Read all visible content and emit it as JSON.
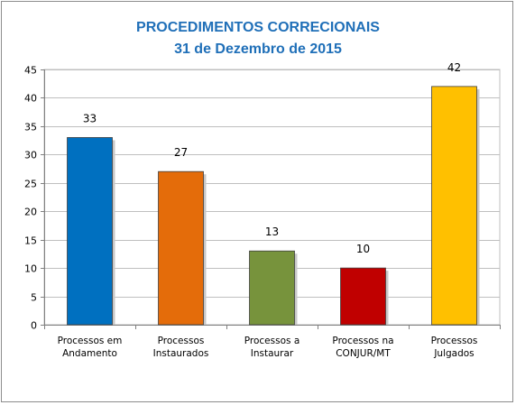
{
  "chart_data": {
    "type": "bar",
    "title": "PROCEDIMENTOS CORRECIONAIS",
    "subtitle": "31 de Dezembro de 2015",
    "categories": [
      [
        "Processos em",
        "Andamento"
      ],
      [
        "Processos",
        "Instaurados"
      ],
      [
        "Processos a",
        "Instaurar"
      ],
      [
        "Processos na",
        "CONJUR/MT"
      ],
      [
        "Processos",
        "Julgados"
      ]
    ],
    "values": [
      33,
      27,
      13,
      10,
      42
    ],
    "colors": [
      "#0070c0",
      "#e46c0a",
      "#77933c",
      "#c00000",
      "#ffc000"
    ],
    "ylim": [
      0,
      45
    ],
    "yticks": [
      0,
      5,
      10,
      15,
      20,
      25,
      30,
      35,
      40,
      45
    ],
    "grid": true,
    "legend": "none",
    "data_labels": true
  }
}
